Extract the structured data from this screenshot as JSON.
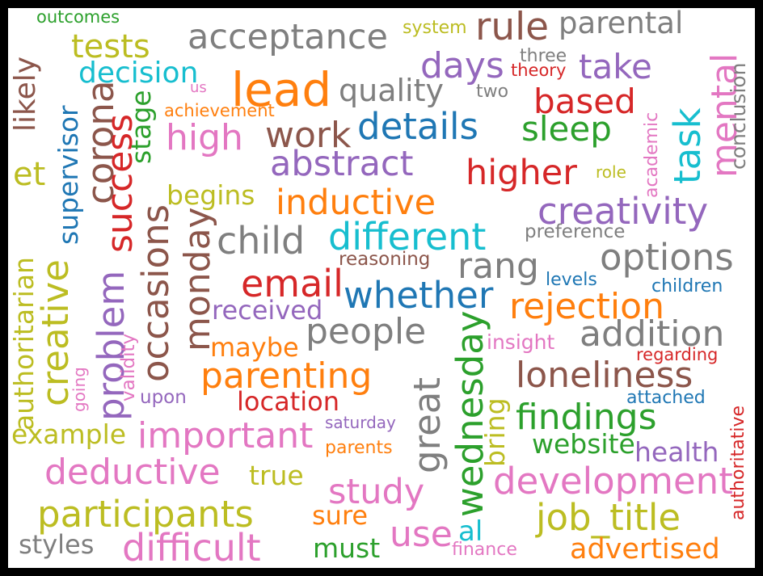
{
  "words": [
    {
      "text": "outcomes",
      "color": "#2ca02c"
    },
    {
      "text": "tests",
      "color": "#bcbd22"
    },
    {
      "text": "acceptance",
      "color": "#7f7f7f"
    },
    {
      "text": "system",
      "color": "#bcbd22"
    },
    {
      "text": "rule",
      "color": "#8c564b"
    },
    {
      "text": "parental",
      "color": "#7f7f7f"
    },
    {
      "text": "lead",
      "color": "#ff7f0e"
    },
    {
      "text": "decision",
      "color": "#17becf"
    },
    {
      "text": "days",
      "color": "#9467bd"
    },
    {
      "text": "take",
      "color": "#9467bd"
    },
    {
      "text": "three",
      "color": "#7f7f7f"
    },
    {
      "text": "theory",
      "color": "#d62728"
    },
    {
      "text": "quality",
      "color": "#7f7f7f"
    },
    {
      "text": "two",
      "color": "#7f7f7f"
    },
    {
      "text": "us",
      "color": "#e377c2"
    },
    {
      "text": "achievement",
      "color": "#ff7f0e"
    },
    {
      "text": "based",
      "color": "#d62728"
    },
    {
      "text": "details",
      "color": "#1f77b4"
    },
    {
      "text": "sleep",
      "color": "#2ca02c"
    },
    {
      "text": "high",
      "color": "#e377c2"
    },
    {
      "text": "work",
      "color": "#8c564b"
    },
    {
      "text": "abstract",
      "color": "#9467bd"
    },
    {
      "text": "higher",
      "color": "#d62728"
    },
    {
      "text": "role",
      "color": "#bcbd22"
    },
    {
      "text": "et",
      "color": "#bcbd22"
    },
    {
      "text": "begins",
      "color": "#bcbd22"
    },
    {
      "text": "inductive",
      "color": "#ff7f0e"
    },
    {
      "text": "creativity",
      "color": "#9467bd"
    },
    {
      "text": "child",
      "color": "#7f7f7f"
    },
    {
      "text": "different",
      "color": "#17becf"
    },
    {
      "text": "preference",
      "color": "#7f7f7f"
    },
    {
      "text": "reasoning",
      "color": "#8c564b"
    },
    {
      "text": "rang",
      "color": "#7f7f7f"
    },
    {
      "text": "options",
      "color": "#7f7f7f"
    },
    {
      "text": "email",
      "color": "#d62728"
    },
    {
      "text": "whether",
      "color": "#1f77b4"
    },
    {
      "text": "levels",
      "color": "#1f77b4"
    },
    {
      "text": "children",
      "color": "#1f77b4"
    },
    {
      "text": "received",
      "color": "#9467bd"
    },
    {
      "text": "rejection",
      "color": "#ff7f0e"
    },
    {
      "text": "people",
      "color": "#7f7f7f"
    },
    {
      "text": "addition",
      "color": "#7f7f7f"
    },
    {
      "text": "maybe",
      "color": "#ff7f0e"
    },
    {
      "text": "insight",
      "color": "#e377c2"
    },
    {
      "text": "regarding",
      "color": "#d62728"
    },
    {
      "text": "parenting",
      "color": "#ff7f0e"
    },
    {
      "text": "loneliness",
      "color": "#8c564b"
    },
    {
      "text": "upon",
      "color": "#9467bd"
    },
    {
      "text": "location",
      "color": "#d62728"
    },
    {
      "text": "attached",
      "color": "#1f77b4"
    },
    {
      "text": "findings",
      "color": "#2ca02c"
    },
    {
      "text": "saturday",
      "color": "#9467bd"
    },
    {
      "text": "example",
      "color": "#bcbd22"
    },
    {
      "text": "important",
      "color": "#e377c2"
    },
    {
      "text": "website",
      "color": "#2ca02c"
    },
    {
      "text": "parents",
      "color": "#ff7f0e"
    },
    {
      "text": "health",
      "color": "#9467bd"
    },
    {
      "text": "deductive",
      "color": "#e377c2"
    },
    {
      "text": "true",
      "color": "#bcbd22"
    },
    {
      "text": "development",
      "color": "#e377c2"
    },
    {
      "text": "study",
      "color": "#e377c2"
    },
    {
      "text": "participants",
      "color": "#bcbd22"
    },
    {
      "text": "sure",
      "color": "#ff7f0e"
    },
    {
      "text": "job_title",
      "color": "#bcbd22"
    },
    {
      "text": "use",
      "color": "#e377c2"
    },
    {
      "text": "al",
      "color": "#17becf"
    },
    {
      "text": "styles",
      "color": "#7f7f7f"
    },
    {
      "text": "difficult",
      "color": "#e377c2"
    },
    {
      "text": "must",
      "color": "#2ca02c"
    },
    {
      "text": "finance",
      "color": "#e377c2"
    },
    {
      "text": "advertised",
      "color": "#ff7f0e"
    },
    {
      "text": "likely",
      "color": "#8c564b"
    },
    {
      "text": "supervisor",
      "color": "#1f77b4"
    },
    {
      "text": "corona",
      "color": "#8c564b"
    },
    {
      "text": "success",
      "color": "#d62728"
    },
    {
      "text": "stage",
      "color": "#2ca02c"
    },
    {
      "text": "authoritarian",
      "color": "#bcbd22"
    },
    {
      "text": "creative",
      "color": "#bcbd22"
    },
    {
      "text": "problem",
      "color": "#9467bd"
    },
    {
      "text": "going",
      "color": "#e377c2"
    },
    {
      "text": "validity",
      "color": "#e377c2"
    },
    {
      "text": "occasions",
      "color": "#8c564b"
    },
    {
      "text": "monday",
      "color": "#8c564b"
    },
    {
      "text": "great",
      "color": "#7f7f7f"
    },
    {
      "text": "wednesday",
      "color": "#2ca02c"
    },
    {
      "text": "bring",
      "color": "#bcbd22"
    },
    {
      "text": "task",
      "color": "#17becf"
    },
    {
      "text": "mental",
      "color": "#e377c2"
    },
    {
      "text": "academic",
      "color": "#e377c2"
    },
    {
      "text": "conclusion",
      "color": "#7f7f7f"
    },
    {
      "text": "authoritative",
      "color": "#d62728"
    }
  ]
}
